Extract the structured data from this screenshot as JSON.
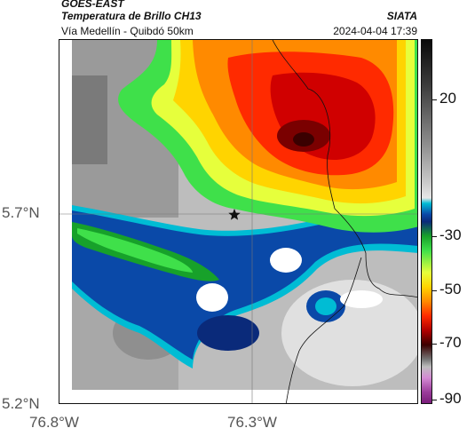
{
  "header": {
    "title": "GOES-EAST",
    "subtitle": "Temperatura de Brillo CH13",
    "region": "Vía Medellín - Quibdó 50km",
    "source": "SIATA",
    "datetime": "2024-04-04 17:39"
  },
  "axes": {
    "lat_labels": [
      "5.7°N",
      "5.2°N"
    ],
    "lon_labels": [
      "76.8°W",
      "76.3°W"
    ]
  },
  "colorbar": {
    "tick_labels": [
      "20",
      "-30",
      "-50",
      "-70",
      "-90"
    ]
  },
  "colors": {
    "warm_background": "#c8c8c8",
    "cold_core": "#b00000",
    "deep_convection": "#3a0000",
    "cyan": "#00bcd4",
    "blue": "#0a49a8",
    "green": "#17a12a",
    "yellow": "#e6ff3c",
    "orange": "#ff8a00",
    "red": "#ff2a00"
  },
  "icons": {
    "site_marker": "star-icon"
  }
}
